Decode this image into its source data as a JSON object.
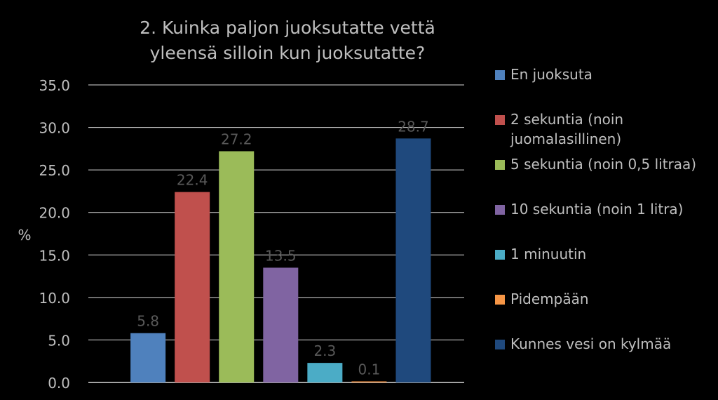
{
  "chart_data": {
    "type": "bar",
    "title": "2. Kuinka paljon juoksutatte vettä yleensä silloin kun juoksutatte?",
    "ylabel": "%",
    "ylim": [
      0,
      35
    ],
    "yticks": [
      "0.0",
      "5.0",
      "10.0",
      "15.0",
      "20.0",
      "25.0",
      "30.0",
      "35.0"
    ],
    "grid": true,
    "legend_position": "right",
    "series": [
      {
        "name": "En juoksuta",
        "value": 5.8,
        "label": "5.8",
        "color": "#4f81bd"
      },
      {
        "name": "2 sekuntia (noin juomalasillinen)",
        "value": 22.4,
        "label": "22.4",
        "color": "#c0504d"
      },
      {
        "name": "5 sekuntia (noin 0,5 litraa)",
        "value": 27.2,
        "label": "27.2",
        "color": "#9bbb59"
      },
      {
        "name": "10 sekuntia (noin 1 litra)",
        "value": 13.5,
        "label": "13.5",
        "color": "#8064a2"
      },
      {
        "name": "1 minuutin",
        "value": 2.3,
        "label": "2.3",
        "color": "#4bacc6"
      },
      {
        "name": "Pidempään",
        "value": 0.1,
        "label": "0.1",
        "color": "#f79646"
      },
      {
        "name": "Kunnes vesi on kylmää",
        "value": 28.7,
        "label": "28.7",
        "color": "#1f497d"
      }
    ]
  }
}
